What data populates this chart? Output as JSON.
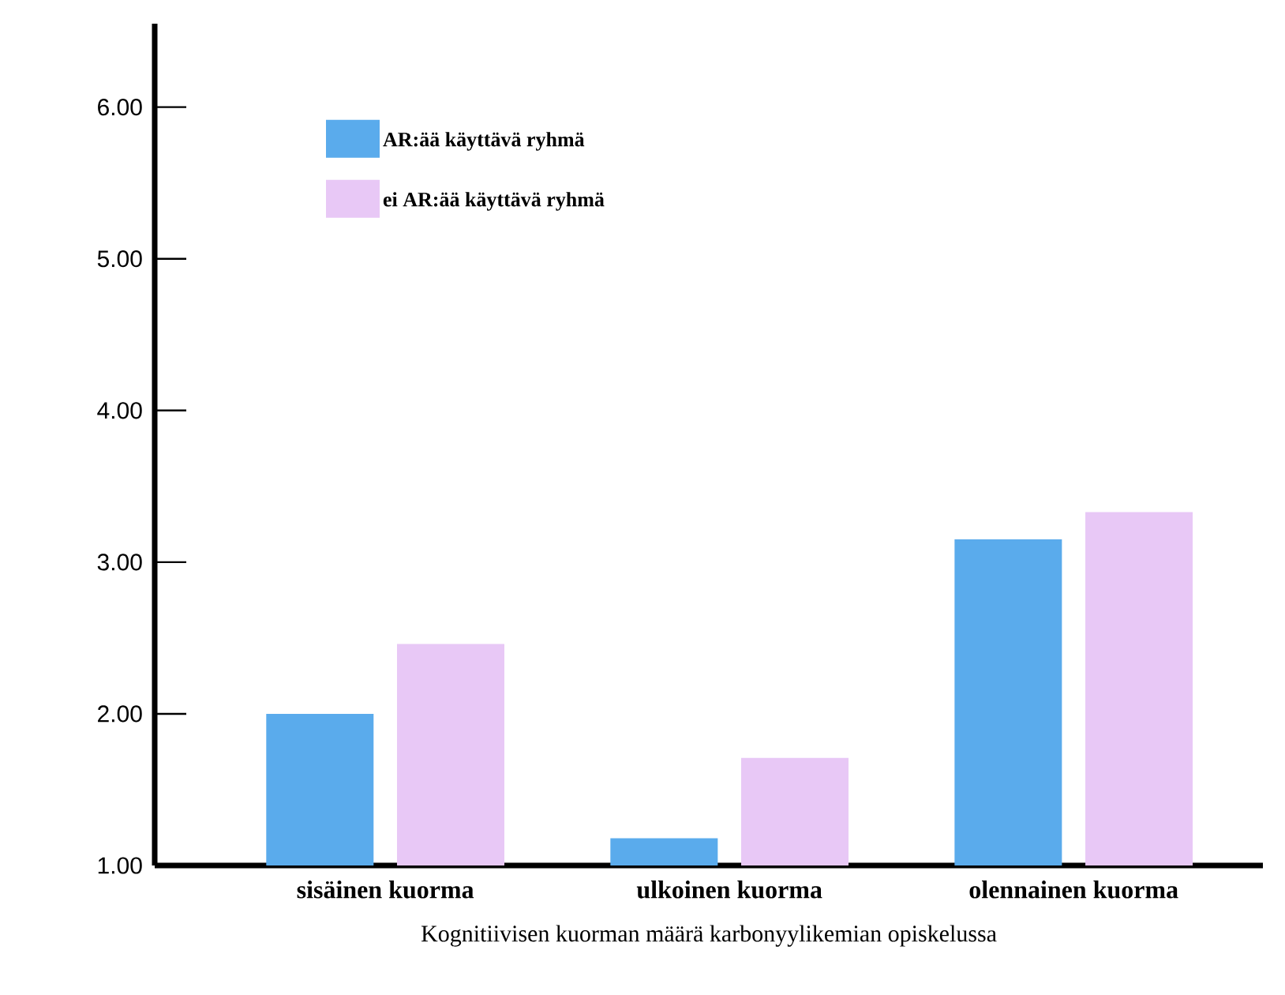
{
  "chart_data": {
    "type": "bar",
    "xlabel": "Kognitiivisen kuorman määrä karbonyylikemian opiskelussa",
    "categories": [
      "sisäinen kuorma",
      "ulkoinen kuorma",
      "olennainen kuorma"
    ],
    "series": [
      {
        "name": "AR:ää käyttävä ryhmä",
        "color": "#5aabec",
        "values": [
          2.0,
          1.18,
          3.15
        ]
      },
      {
        "name": "ei AR:ää käyttävä ryhmä",
        "color": "#e8c8f6",
        "values": [
          2.46,
          1.71,
          3.33
        ]
      }
    ],
    "ylim": [
      1.0,
      6.55
    ],
    "yticks": [
      {
        "value": 1,
        "label": "1.00"
      },
      {
        "value": 2,
        "label": "2.00"
      },
      {
        "value": 3,
        "label": "3.00"
      },
      {
        "value": 4,
        "label": "4.00"
      },
      {
        "value": 5,
        "label": "5.00"
      },
      {
        "value": 6,
        "label": "6.00"
      }
    ],
    "legend": "top left"
  }
}
